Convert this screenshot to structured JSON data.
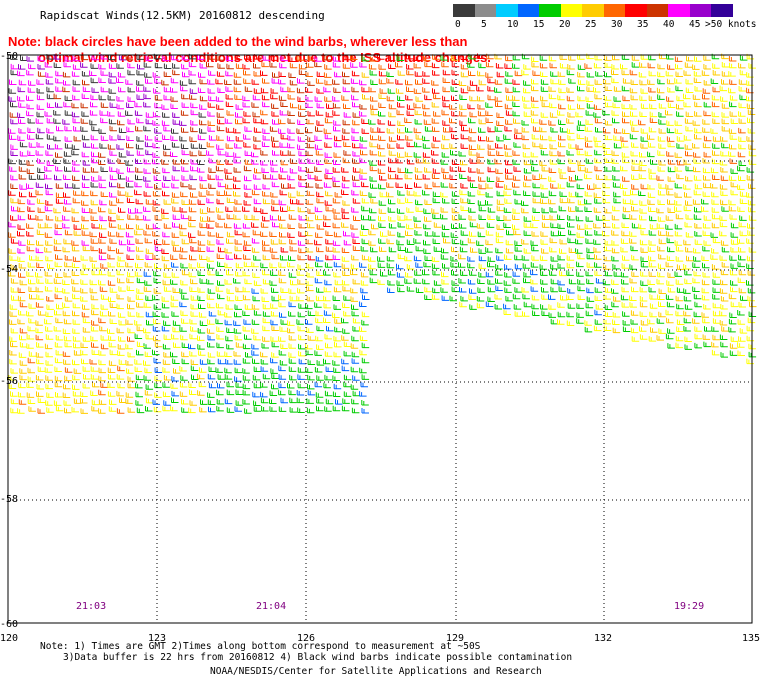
{
  "title": "Rapidscat Winds(12.5KM) 20160812 descending",
  "note": {
    "line1": "Note: black circles have been added to the wind barbs, wherever less than",
    "line2": "optimal wind retrieval conditions are met due to the ISS altitude changes."
  },
  "legend": {
    "units": ">50 knots",
    "ticks": [
      "0",
      "5",
      "10",
      "15",
      "20",
      "25",
      "30",
      "35",
      "40",
      "45"
    ],
    "colors": [
      "#3a3a3a",
      "#8c8c8c",
      "#00ccff",
      "#0066ff",
      "#00cc00",
      "#ffff00",
      "#ffcc00",
      "#ff6600",
      "#ff0000",
      "#cc3300",
      "#ff00ff",
      "#9900cc",
      "#330099"
    ]
  },
  "map": {
    "lon_ticks": [
      "120",
      "123",
      "126",
      "129",
      "132",
      "135"
    ],
    "lat_ticks": [
      "-50",
      "-54",
      "-56",
      "-58",
      "-60"
    ],
    "time_labels": [
      "21:03",
      "21:04",
      "19:29"
    ],
    "time_color": "#800080"
  },
  "footer": {
    "line1": "Note: 1) Times are GMT 2)Times along bottom correspond to measurement at ~50S",
    "line2": "3)Data buffer is 22 hrs from 20160812 4) Black wind barbs indicate possible contamination",
    "credit": "NOAA/NESDIS/Center for Satellite Applications and Research"
  }
}
